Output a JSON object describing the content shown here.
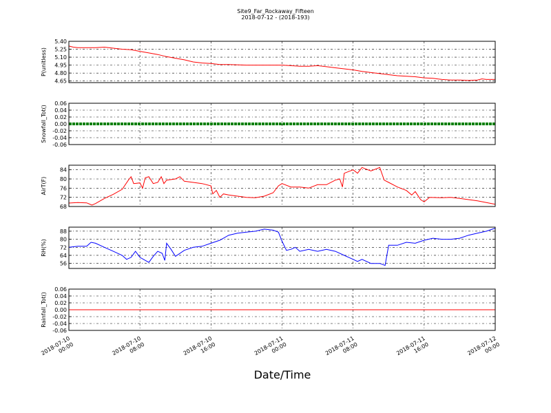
{
  "chart_data": {
    "title": "Site9_Far_Rockaway_Fifteen",
    "subtitle": "2018-07-12 - (2018-193)",
    "xlabel": "Date/Time",
    "x_ticks": [
      "2018-07-10\n00:00",
      "2018-07-10\n08:00",
      "2018-07-10\n16:00",
      "2018-07-11\n00:00",
      "2018-07-11\n08:00",
      "2018-07-11\n16:00",
      "2018-07-12\n00:00"
    ],
    "x_range_hours": [
      0,
      48
    ],
    "grid": true,
    "panels": [
      {
        "type": "line",
        "ylabel": "P(unitless)",
        "ylim": [
          4.62,
          5.4
        ],
        "yticks": [
          "4.65",
          "4.80",
          "4.95",
          "5.10",
          "5.25",
          "5.40"
        ],
        "ytick_values": [
          4.65,
          4.8,
          4.95,
          5.1,
          5.25,
          5.4
        ],
        "color": "#ff0000",
        "series": [
          {
            "x": 0,
            "y": 5.31
          },
          {
            "x": 0.5,
            "y": 5.29
          },
          {
            "x": 1,
            "y": 5.28
          },
          {
            "x": 2,
            "y": 5.28
          },
          {
            "x": 3,
            "y": 5.28
          },
          {
            "x": 4,
            "y": 5.29
          },
          {
            "x": 4.5,
            "y": 5.28
          },
          {
            "x": 5,
            "y": 5.27
          },
          {
            "x": 6,
            "y": 5.25
          },
          {
            "x": 7,
            "y": 5.24
          },
          {
            "x": 8,
            "y": 5.21
          },
          {
            "x": 9,
            "y": 5.18
          },
          {
            "x": 10,
            "y": 5.15
          },
          {
            "x": 11,
            "y": 5.11
          },
          {
            "x": 12,
            "y": 5.08
          },
          {
            "x": 13,
            "y": 5.05
          },
          {
            "x": 14,
            "y": 5.01
          },
          {
            "x": 15,
            "y": 4.99
          },
          {
            "x": 16,
            "y": 4.98
          },
          {
            "x": 17,
            "y": 4.96
          },
          {
            "x": 18,
            "y": 4.96
          },
          {
            "x": 20,
            "y": 4.95
          },
          {
            "x": 22,
            "y": 4.95
          },
          {
            "x": 24,
            "y": 4.95
          },
          {
            "x": 25,
            "y": 4.94
          },
          {
            "x": 26,
            "y": 4.93
          },
          {
            "x": 27,
            "y": 4.93
          },
          {
            "x": 28,
            "y": 4.94
          },
          {
            "x": 29,
            "y": 4.92
          },
          {
            "x": 30,
            "y": 4.9
          },
          {
            "x": 31,
            "y": 4.88
          },
          {
            "x": 32,
            "y": 4.86
          },
          {
            "x": 33,
            "y": 4.83
          },
          {
            "x": 34,
            "y": 4.81
          },
          {
            "x": 35,
            "y": 4.79
          },
          {
            "x": 36,
            "y": 4.77
          },
          {
            "x": 37,
            "y": 4.75
          },
          {
            "x": 38,
            "y": 4.74
          },
          {
            "x": 39,
            "y": 4.73
          },
          {
            "x": 40,
            "y": 4.71
          },
          {
            "x": 41,
            "y": 4.7
          },
          {
            "x": 42,
            "y": 4.68
          },
          {
            "x": 43,
            "y": 4.67
          },
          {
            "x": 44,
            "y": 4.67
          },
          {
            "x": 45,
            "y": 4.66
          },
          {
            "x": 46,
            "y": 4.67
          },
          {
            "x": 46.5,
            "y": 4.69
          },
          {
            "x": 47,
            "y": 4.68
          },
          {
            "x": 48,
            "y": 4.68
          }
        ]
      },
      {
        "type": "line",
        "ylabel": "Snowfall_Tot()",
        "ylim": [
          -0.06,
          0.06
        ],
        "yticks": [
          "-0.06",
          "-0.04",
          "-0.02",
          "0.00",
          "0.02",
          "0.04",
          "0.06"
        ],
        "ytick_values": [
          -0.06,
          -0.04,
          -0.02,
          0.0,
          0.02,
          0.04,
          0.06
        ],
        "color": "#007f00",
        "style": "thick",
        "series": [
          {
            "x": 0,
            "y": 0
          },
          {
            "x": 48,
            "y": 0
          }
        ]
      },
      {
        "type": "line",
        "ylabel": "AirT(F)",
        "ylim": [
          68,
          86
        ],
        "yticks": [
          "68",
          "72",
          "76",
          "80",
          "84"
        ],
        "ytick_values": [
          68,
          72,
          76,
          80,
          84
        ],
        "color": "#ff0000",
        "series": [
          {
            "x": 0,
            "y": 69.5
          },
          {
            "x": 1,
            "y": 69.7
          },
          {
            "x": 2,
            "y": 69.6
          },
          {
            "x": 2.6,
            "y": 68.6
          },
          {
            "x": 3,
            "y": 69.3
          },
          {
            "x": 4,
            "y": 71.5
          },
          {
            "x": 5,
            "y": 73.3
          },
          {
            "x": 6,
            "y": 75.5
          },
          {
            "x": 6.7,
            "y": 79.5
          },
          {
            "x": 7,
            "y": 81.0
          },
          {
            "x": 7.3,
            "y": 78.0
          },
          {
            "x": 8,
            "y": 78.3
          },
          {
            "x": 8.3,
            "y": 76.0
          },
          {
            "x": 8.6,
            "y": 80.5
          },
          {
            "x": 9,
            "y": 81.0
          },
          {
            "x": 9.5,
            "y": 78.0
          },
          {
            "x": 10,
            "y": 78.5
          },
          {
            "x": 10.4,
            "y": 81.0
          },
          {
            "x": 10.7,
            "y": 78.0
          },
          {
            "x": 11,
            "y": 79.5
          },
          {
            "x": 12,
            "y": 80.0
          },
          {
            "x": 12.5,
            "y": 81.0
          },
          {
            "x": 13,
            "y": 79.0
          },
          {
            "x": 14,
            "y": 78.5
          },
          {
            "x": 15,
            "y": 78.0
          },
          {
            "x": 16,
            "y": 77.0
          },
          {
            "x": 16.2,
            "y": 73.5
          },
          {
            "x": 16.6,
            "y": 75.0
          },
          {
            "x": 17,
            "y": 72.0
          },
          {
            "x": 17.4,
            "y": 73.5
          },
          {
            "x": 18,
            "y": 73.0
          },
          {
            "x": 19,
            "y": 72.5
          },
          {
            "x": 20,
            "y": 72.0
          },
          {
            "x": 21,
            "y": 71.8
          },
          {
            "x": 22,
            "y": 72.5
          },
          {
            "x": 23,
            "y": 74.0
          },
          {
            "x": 23.6,
            "y": 77.0
          },
          {
            "x": 24,
            "y": 78.0
          },
          {
            "x": 25,
            "y": 76.5
          },
          {
            "x": 26,
            "y": 76.5
          },
          {
            "x": 27,
            "y": 76.0
          },
          {
            "x": 28,
            "y": 77.5
          },
          {
            "x": 29,
            "y": 77.5
          },
          {
            "x": 30,
            "y": 79.5
          },
          {
            "x": 30.5,
            "y": 80.0
          },
          {
            "x": 30.8,
            "y": 76.5
          },
          {
            "x": 31,
            "y": 82.5
          },
          {
            "x": 32,
            "y": 84.0
          },
          {
            "x": 32.5,
            "y": 82.5
          },
          {
            "x": 33,
            "y": 85.0
          },
          {
            "x": 34,
            "y": 83.5
          },
          {
            "x": 35,
            "y": 85.0
          },
          {
            "x": 35.5,
            "y": 79.5
          },
          {
            "x": 36,
            "y": 78.5
          },
          {
            "x": 37,
            "y": 76.5
          },
          {
            "x": 38,
            "y": 75.0
          },
          {
            "x": 38.6,
            "y": 73.0
          },
          {
            "x": 39,
            "y": 74.5
          },
          {
            "x": 39.6,
            "y": 71.0
          },
          {
            "x": 40,
            "y": 70.0
          },
          {
            "x": 40.6,
            "y": 72.0
          },
          {
            "x": 42,
            "y": 71.8
          },
          {
            "x": 43,
            "y": 72.0
          },
          {
            "x": 44,
            "y": 71.5
          },
          {
            "x": 45,
            "y": 71.0
          },
          {
            "x": 46,
            "y": 70.5
          },
          {
            "x": 47,
            "y": 69.7
          },
          {
            "x": 48,
            "y": 69.0
          }
        ]
      },
      {
        "type": "line",
        "ylabel": "RH(%)",
        "ylim": [
          51,
          92
        ],
        "yticks": [
          "56",
          "64",
          "72",
          "80",
          "88"
        ],
        "ytick_values": [
          56,
          64,
          72,
          80,
          88
        ],
        "color": "#0000ff",
        "series": [
          {
            "x": 0,
            "y": 72
          },
          {
            "x": 1,
            "y": 73
          },
          {
            "x": 2,
            "y": 73
          },
          {
            "x": 2.5,
            "y": 77
          },
          {
            "x": 3,
            "y": 76
          },
          {
            "x": 4,
            "y": 72
          },
          {
            "x": 5,
            "y": 68
          },
          {
            "x": 6,
            "y": 64
          },
          {
            "x": 6.5,
            "y": 60
          },
          {
            "x": 7,
            "y": 62
          },
          {
            "x": 7.5,
            "y": 68
          },
          {
            "x": 8,
            "y": 62
          },
          {
            "x": 9,
            "y": 57
          },
          {
            "x": 9.5,
            "y": 63
          },
          {
            "x": 10,
            "y": 68
          },
          {
            "x": 10.5,
            "y": 66
          },
          {
            "x": 10.8,
            "y": 59
          },
          {
            "x": 11,
            "y": 76
          },
          {
            "x": 11.5,
            "y": 70
          },
          {
            "x": 12,
            "y": 63
          },
          {
            "x": 13,
            "y": 69
          },
          {
            "x": 14,
            "y": 72
          },
          {
            "x": 15,
            "y": 73
          },
          {
            "x": 16,
            "y": 76
          },
          {
            "x": 17,
            "y": 79
          },
          {
            "x": 18,
            "y": 84
          },
          {
            "x": 19,
            "y": 86
          },
          {
            "x": 20,
            "y": 87
          },
          {
            "x": 21,
            "y": 88
          },
          {
            "x": 22,
            "y": 90
          },
          {
            "x": 23,
            "y": 89
          },
          {
            "x": 23.6,
            "y": 87
          },
          {
            "x": 24,
            "y": 78
          },
          {
            "x": 24.5,
            "y": 69
          },
          {
            "x": 25,
            "y": 70
          },
          {
            "x": 25.5,
            "y": 72
          },
          {
            "x": 26,
            "y": 68
          },
          {
            "x": 27,
            "y": 70
          },
          {
            "x": 28,
            "y": 68
          },
          {
            "x": 29,
            "y": 70
          },
          {
            "x": 30,
            "y": 68
          },
          {
            "x": 31,
            "y": 64
          },
          {
            "x": 32,
            "y": 60
          },
          {
            "x": 32.5,
            "y": 58
          },
          {
            "x": 33,
            "y": 60
          },
          {
            "x": 34,
            "y": 56
          },
          {
            "x": 35,
            "y": 56
          },
          {
            "x": 35.6,
            "y": 54
          },
          {
            "x": 36,
            "y": 74
          },
          {
            "x": 37,
            "y": 74
          },
          {
            "x": 38,
            "y": 77
          },
          {
            "x": 39,
            "y": 76
          },
          {
            "x": 40,
            "y": 79
          },
          {
            "x": 41,
            "y": 81
          },
          {
            "x": 42,
            "y": 80
          },
          {
            "x": 43,
            "y": 80
          },
          {
            "x": 44,
            "y": 81
          },
          {
            "x": 45,
            "y": 84
          },
          {
            "x": 46,
            "y": 86
          },
          {
            "x": 47,
            "y": 88
          },
          {
            "x": 48,
            "y": 91
          }
        ]
      },
      {
        "type": "line",
        "ylabel": "Rainfall_Tot()",
        "ylim": [
          -0.06,
          0.06
        ],
        "yticks": [
          "-0.06",
          "-0.04",
          "-0.02",
          "0.00",
          "0.02",
          "0.04",
          "0.06"
        ],
        "ytick_values": [
          -0.06,
          -0.04,
          -0.02,
          0.0,
          0.02,
          0.04,
          0.06
        ],
        "color": "#ff0000",
        "series": [
          {
            "x": 0,
            "y": 0
          },
          {
            "x": 48,
            "y": 0
          }
        ]
      }
    ]
  }
}
